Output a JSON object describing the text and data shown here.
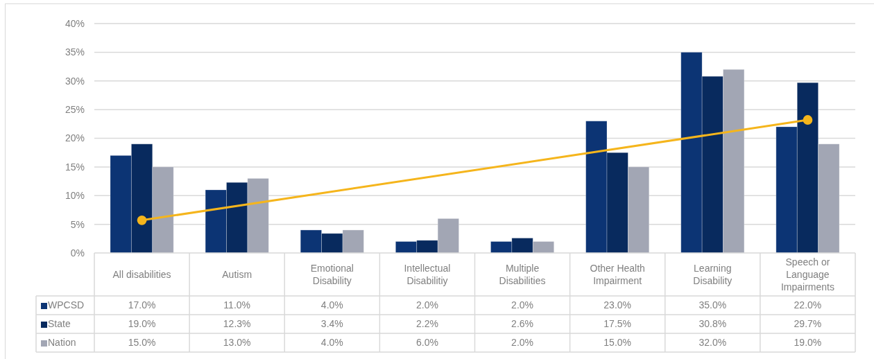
{
  "chart_data": {
    "type": "bar",
    "categories": [
      "All disabilities",
      "Autism",
      "Emotional Disability",
      "Intellectual Disabilitiy",
      "Multiple Disabilities",
      "Other Health Impairment",
      "Learning Disability",
      "Speech or Language Impairments"
    ],
    "series": [
      {
        "name": "WPCSD",
        "color": "#0c3474",
        "values": [
          17,
          11,
          4,
          2,
          2,
          23,
          35,
          22
        ],
        "value_labels": [
          "17.0%",
          "11.0%",
          "4.0%",
          "2.0%",
          "2.0%",
          "23.0%",
          "35.0%",
          "22.0%"
        ]
      },
      {
        "name": "State",
        "color": "#082a5e",
        "values": [
          19,
          12.3,
          3.4,
          2.2,
          2.6,
          17.5,
          30.8,
          29.7
        ],
        "value_labels": [
          "19.0%",
          "12.3%",
          "3.4%",
          "2.2%",
          "2.6%",
          "17.5%",
          "30.8%",
          "29.7%"
        ]
      },
      {
        "name": "Nation",
        "color": "#a2a6b4",
        "values": [
          15,
          13,
          4,
          6,
          2,
          15,
          32,
          19
        ],
        "value_labels": [
          "15.0%",
          "13.0%",
          "4.0%",
          "6.0%",
          "2.0%",
          "15.0%",
          "32.0%",
          "19.0%"
        ]
      },
      {
        "type": "line",
        "x": [
          "All disabilities",
          "Speech or Language Impairments"
        ],
        "values": [
          5.7,
          23.2
        ],
        "color": "#f5b51c",
        "marker": "circle"
      }
    ],
    "ylim": [
      0,
      40
    ],
    "yticks": [
      {
        "value": 0,
        "label": "0%"
      },
      {
        "value": 5,
        "label": "5%"
      },
      {
        "value": 10,
        "label": "10%"
      },
      {
        "value": 15,
        "label": "15%"
      },
      {
        "value": 20,
        "label": "20%"
      },
      {
        "value": 25,
        "label": "25%"
      },
      {
        "value": 30,
        "label": "30%"
      },
      {
        "value": 35,
        "label": "35%"
      },
      {
        "value": 40,
        "label": "40%"
      }
    ],
    "grid": "y",
    "legend": "bottom"
  }
}
